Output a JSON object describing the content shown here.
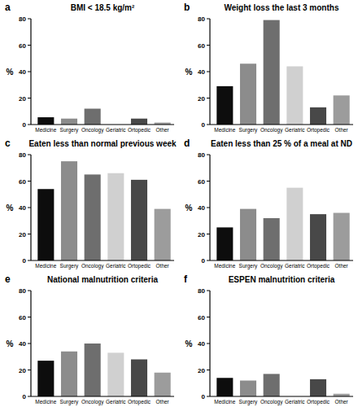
{
  "chart_data": [
    {
      "type": "bar",
      "panel": "a",
      "title": "BMI < 18.5 kg/m²",
      "y_label": "%",
      "categories": [
        "Medicine",
        "Surgery",
        "Oncology",
        "Geriatric",
        "Ortopedic",
        "Other"
      ],
      "values": [
        5.5,
        4.5,
        12,
        0,
        4.5,
        1.5
      ],
      "colors": [
        "#0d0d0d",
        "#8c8c8c",
        "#6e6e6e",
        "#d0d0d0",
        "#484848",
        "#9c9c9c"
      ],
      "ylim": [
        0,
        80
      ],
      "yticks": [
        0,
        20,
        40,
        60,
        80
      ],
      "grid": false
    },
    {
      "type": "bar",
      "panel": "b",
      "title": "Weight loss the last 3 months",
      "y_label": "%",
      "categories": [
        "Medicine",
        "Surgery",
        "Oncology",
        "Geriatric",
        "Ortopedic",
        "Other"
      ],
      "values": [
        29,
        46,
        79,
        44,
        13,
        22
      ],
      "colors": [
        "#0d0d0d",
        "#8c8c8c",
        "#6e6e6e",
        "#d0d0d0",
        "#484848",
        "#9c9c9c"
      ],
      "ylim": [
        0,
        80
      ],
      "yticks": [
        0,
        20,
        40,
        60,
        80
      ],
      "grid": false
    },
    {
      "type": "bar",
      "panel": "c",
      "title": "Eaten less than normal previous week",
      "y_label": "%",
      "categories": [
        "Medicine",
        "Surgery",
        "Oncology",
        "Geriatric",
        "Ortopedic",
        "Other"
      ],
      "values": [
        54,
        75,
        65,
        66,
        61,
        39
      ],
      "colors": [
        "#0d0d0d",
        "#8c8c8c",
        "#6e6e6e",
        "#d0d0d0",
        "#484848",
        "#9c9c9c"
      ],
      "ylim": [
        0,
        80
      ],
      "yticks": [
        0,
        20,
        40,
        60,
        80
      ],
      "grid": false
    },
    {
      "type": "bar",
      "panel": "d",
      "title": "Eaten less than 25 % of a meal at ND",
      "y_label": "%",
      "categories": [
        "Medicine",
        "Surgery",
        "Oncology",
        "Geriatric",
        "Ortopedic",
        "Other"
      ],
      "values": [
        25,
        39,
        32,
        55,
        35,
        36
      ],
      "colors": [
        "#0d0d0d",
        "#8c8c8c",
        "#6e6e6e",
        "#d0d0d0",
        "#484848",
        "#9c9c9c"
      ],
      "ylim": [
        0,
        80
      ],
      "yticks": [
        0,
        20,
        40,
        60,
        80
      ],
      "grid": false
    },
    {
      "type": "bar",
      "panel": "e",
      "title": "National malnutrition criteria",
      "y_label": "%",
      "categories": [
        "Medicine",
        "Surgery",
        "Oncology",
        "Geriatric",
        "Ortopedic",
        "Other"
      ],
      "values": [
        27,
        34,
        40,
        33,
        28,
        18
      ],
      "colors": [
        "#0d0d0d",
        "#8c8c8c",
        "#6e6e6e",
        "#d0d0d0",
        "#484848",
        "#9c9c9c"
      ],
      "ylim": [
        0,
        80
      ],
      "yticks": [
        0,
        20,
        40,
        60,
        80
      ],
      "grid": false
    },
    {
      "type": "bar",
      "panel": "f",
      "title": "ESPEN malnutrition criteria",
      "y_label": "%",
      "categories": [
        "Medicine",
        "Surgery",
        "Oncology",
        "Geriatric",
        "Ortopedic",
        "Other"
      ],
      "values": [
        14,
        12,
        17,
        0,
        13,
        2
      ],
      "colors": [
        "#0d0d0d",
        "#8c8c8c",
        "#6e6e6e",
        "#d0d0d0",
        "#484848",
        "#9c9c9c"
      ],
      "ylim": [
        0,
        80
      ],
      "yticks": [
        0,
        20,
        40,
        60,
        80
      ],
      "grid": false
    }
  ]
}
